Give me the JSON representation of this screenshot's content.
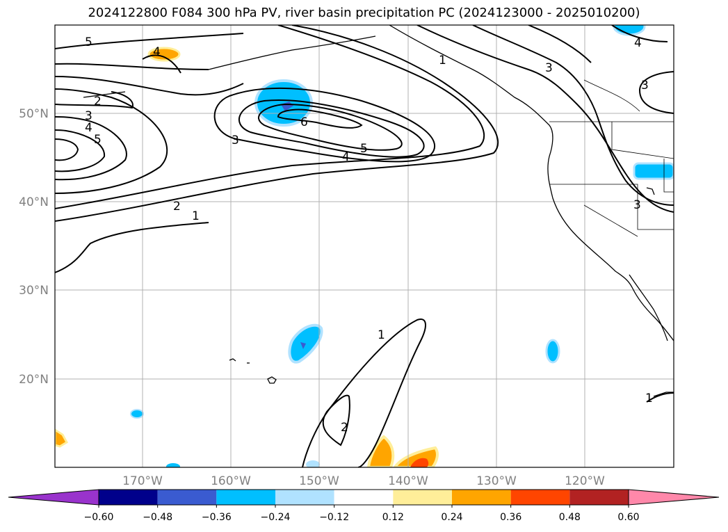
{
  "title": "2024122800 F084 300 hPa PV, river basin precipitation PC (2024123000 - 2025010200)",
  "latitude_labels": [
    "50°N",
    "40°N",
    "30°N",
    "20°N"
  ],
  "longitude_labels": [
    "170°W",
    "160°W",
    "150°W",
    "140°W",
    "130°W",
    "120°W"
  ],
  "map": {
    "projection": "PlateCarree",
    "extent_lon": [
      -180,
      -110
    ],
    "extent_lat": [
      10,
      60
    ],
    "gridlines": true,
    "gridline_color": "#b0b0b0"
  },
  "pv_contour_labels": [
    "5",
    "2",
    "3",
    "4",
    "5",
    "6",
    "3",
    "4",
    "5",
    "2",
    "1",
    "1",
    "3",
    "3",
    "4",
    "3",
    "1",
    "2",
    "1",
    "4"
  ],
  "colorbar": {
    "tick_labels": [
      "−0.60",
      "−0.48",
      "−0.36",
      "−0.24",
      "−0.12",
      "0.12",
      "0.24",
      "0.36",
      "0.48",
      "0.60"
    ],
    "colors": [
      "#9933cc",
      "#00008b",
      "#3a5bd0",
      "#00bfff",
      "#b0e2ff",
      "#ffffff",
      "#ffee99",
      "#ffa500",
      "#ff4500",
      "#b22222",
      "#ff88aa"
    ],
    "extend": "both"
  }
}
